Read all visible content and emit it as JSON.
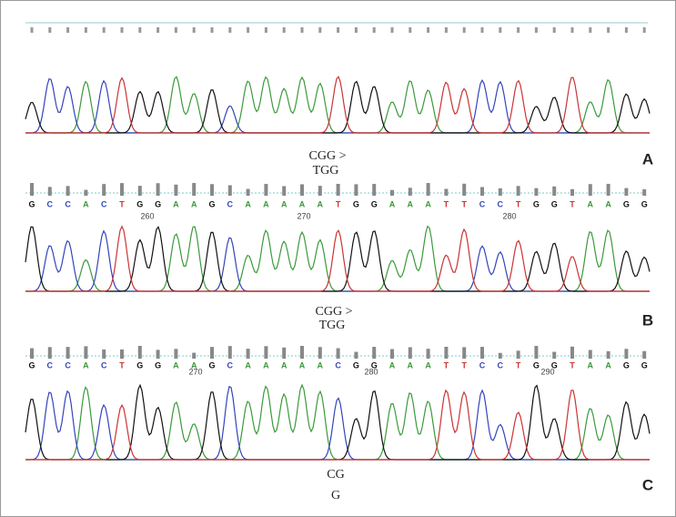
{
  "panels": [
    {
      "label": "A",
      "annotation": [
        "CGG >",
        "TGG"
      ]
    },
    {
      "label": "B",
      "bases": [
        "G",
        "C",
        "C",
        "A",
        "C",
        "T",
        "G",
        "G",
        "A",
        "A",
        "G",
        "C",
        "A",
        "A",
        "A",
        "A",
        "A",
        "T",
        "G",
        "G",
        "A",
        "A",
        "A",
        "T",
        "T",
        "C",
        "C",
        "T",
        "G",
        "G",
        "T",
        "A",
        "A",
        "G",
        "G"
      ],
      "positions": [
        260,
        270,
        280
      ],
      "annotation": [
        "CGG >",
        "TGG"
      ]
    },
    {
      "label": "C",
      "bases": [
        "G",
        "C",
        "C",
        "A",
        "C",
        "T",
        "G",
        "G",
        "A",
        "A",
        "G",
        "C",
        "A",
        "A",
        "A",
        "A",
        "A",
        "C",
        "G",
        "G",
        "A",
        "A",
        "A",
        "T",
        "T",
        "C",
        "C",
        "T",
        "G",
        "G",
        "T",
        "A",
        "A",
        "G",
        "G"
      ],
      "positions": [
        270,
        280,
        290
      ],
      "annotation": [
        "CG",
        "G"
      ]
    }
  ]
}
